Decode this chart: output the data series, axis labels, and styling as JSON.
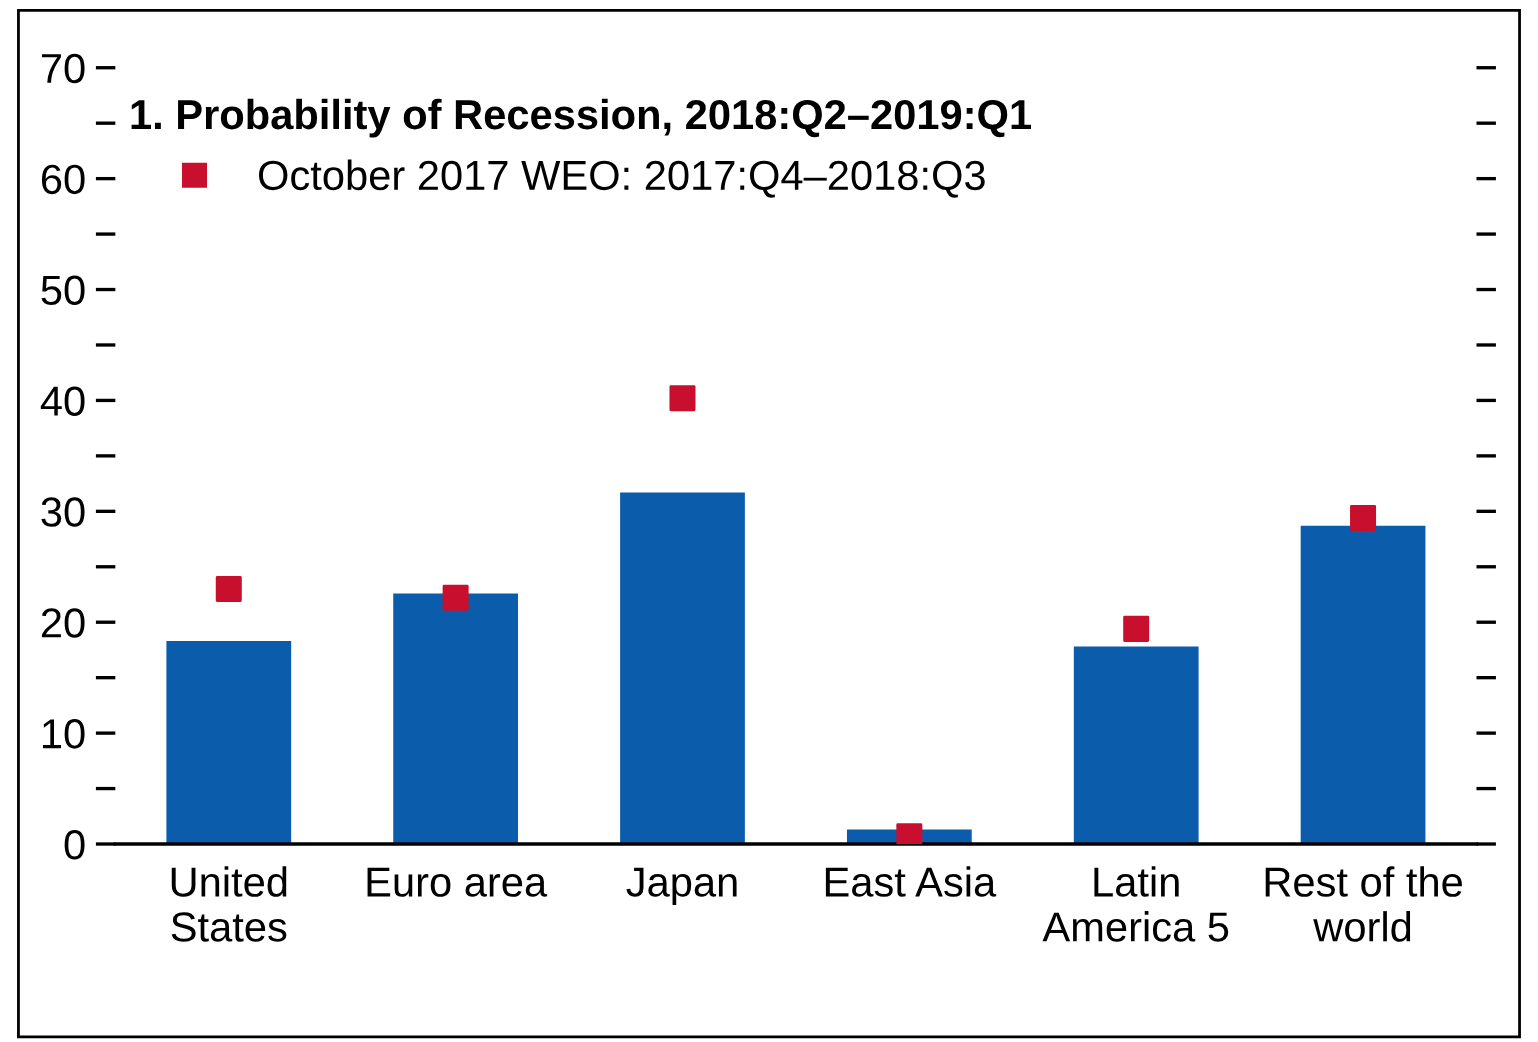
{
  "chart_data": {
    "type": "bar",
    "title": "1. Probability of Recession, 2018:Q2–2019:Q1",
    "categories": [
      "United\nStates",
      "Euro area",
      "Japan",
      "East Asia",
      "Latin\nAmerica 5",
      "Rest of the\nworld"
    ],
    "series": [
      {
        "color": "#0b5cab",
        "values": [
          18.3,
          22.6,
          31.7,
          1.3,
          17.8,
          28.7
        ]
      },
      {
        "type": "scatter",
        "name": "October 2017 WEO: 2017:Q4–2018:Q3",
        "color": "#c8102e",
        "marker": "square",
        "values": [
          23.0,
          22.2,
          40.2,
          0.7,
          19.4,
          29.4
        ]
      }
    ],
    "ylim": [
      0,
      70
    ],
    "yticks": [
      0,
      {
        "value": 5,
        "label": null
      },
      10,
      {
        "value": 15,
        "label": null
      },
      20,
      {
        "value": 25,
        "label": null
      },
      30,
      {
        "value": 35,
        "label": null
      },
      40,
      {
        "value": 45,
        "label": null
      },
      50,
      {
        "value": 55,
        "label": null
      },
      60,
      {
        "value": 65,
        "label": null
      },
      70
    ],
    "legend": "top left",
    "grid": false
  }
}
